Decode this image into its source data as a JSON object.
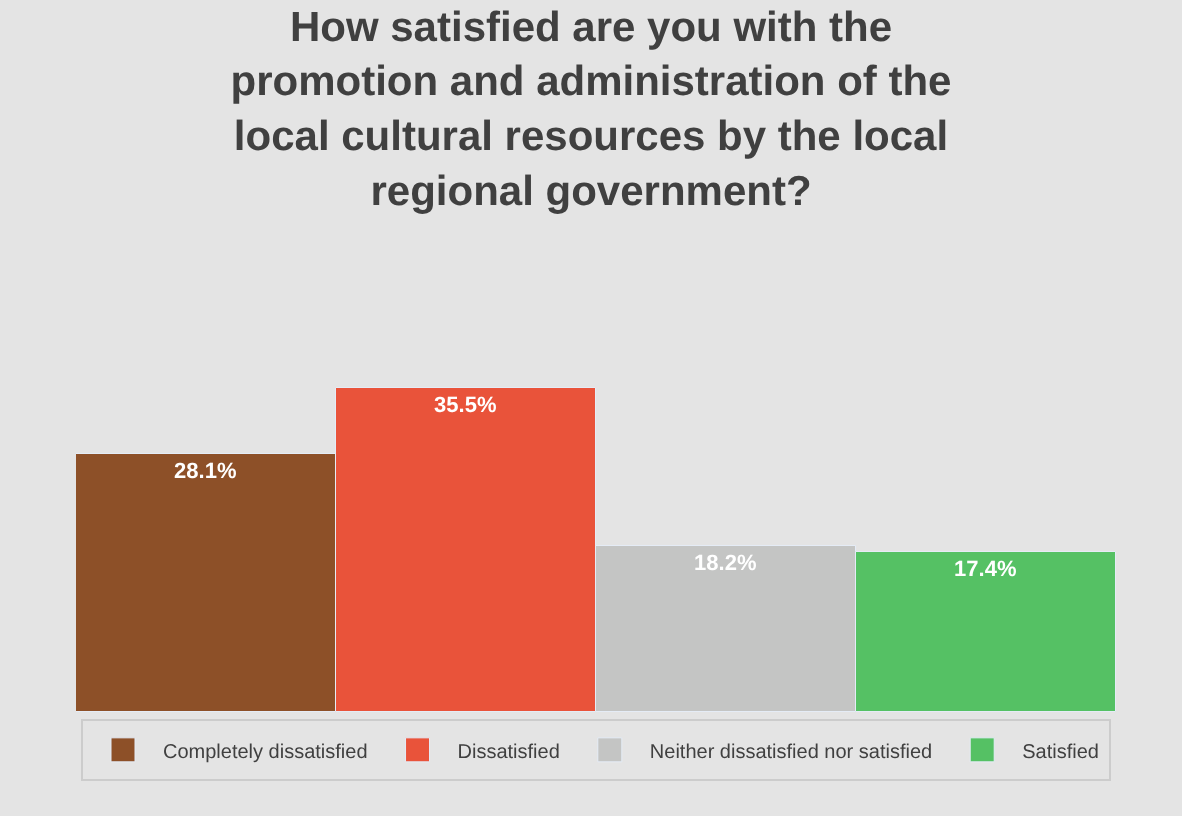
{
  "chart_data": {
    "type": "bar",
    "title": "How satisfied are you with the promotion and administration of the local cultural resources by the local regional government?",
    "categories": [
      null
    ],
    "series": [
      {
        "name": "Completely dissatisfied",
        "color": "#8d5028",
        "values": [
          28.1
        ],
        "value_labels": [
          "28.1%"
        ]
      },
      {
        "name": "Dissatisfied",
        "color": "#e9533a",
        "values": [
          35.5
        ],
        "value_labels": [
          "35.5%"
        ]
      },
      {
        "name": "Neither dissatisfied nor satisfied",
        "color": "#c4c5c4",
        "values": [
          18.2
        ],
        "value_labels": [
          "18.2%"
        ]
      },
      {
        "name": "Satisfied",
        "color": "#55c164",
        "values": [
          17.4
        ],
        "value_labels": [
          "17.4%"
        ]
      }
    ],
    "legend": "bottom"
  }
}
